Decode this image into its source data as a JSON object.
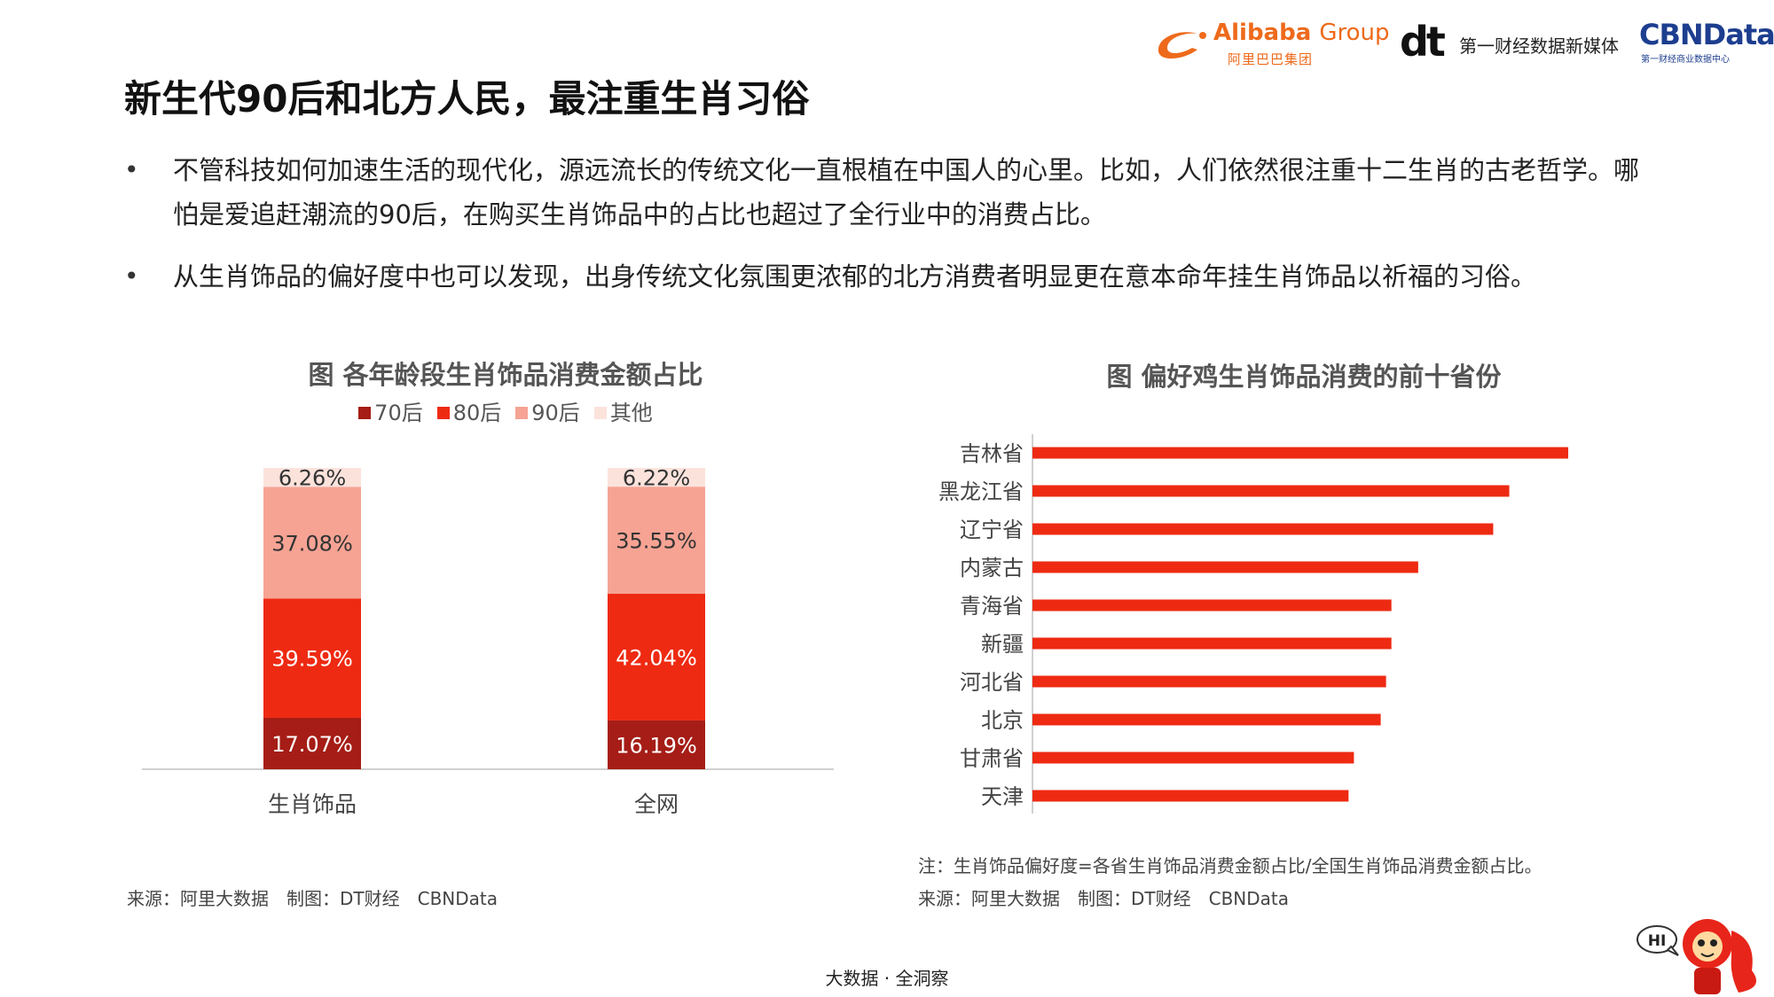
{
  "header": {
    "alibaba_name": "Alibaba",
    "alibaba_group": "Group",
    "alibaba_cn": "阿里巴巴集团",
    "dt_mark": "dt",
    "dt_text": "第一财经数据新媒体",
    "cbn_name": "CBNData",
    "cbn_sub": "第一财经商业数据中心"
  },
  "title": "新生代90后和北方人民，最注重生肖习俗",
  "bullets": [
    "不管科技如何加速生活的现代化，源远流长的传统文化一直根植在中国人的心里。比如，人们依然很注重十二生肖的古老哲学。哪怕是爱追赶潮流的90后，在购买生肖饰品中的占比也超过了全行业中的消费占比。",
    "从生肖饰品的偏好度中也可以发现，出身传统文化氛围更浓郁的北方消费者明显更在意本命年挂生肖饰品以祈福的习俗。"
  ],
  "bullet_marker": "•",
  "left_chart_title": "图 各年龄段生肖饰品消费金额占比",
  "right_chart_title": "图 偏好鸡生肖饰品消费的前十省份",
  "source_left": "来源：阿里大数据　制图：DT财经　CBNData",
  "note_right": "注：生肖饰品偏好度=各省生肖饰品消费金额占比/全国生肖饰品消费金额占比。",
  "source_right": "来源：阿里大数据　制图：DT财经　CBNData",
  "footer": "大数据 · 全洞察",
  "mascot_text": "HI",
  "colors": {
    "70后": "#a51d16",
    "80后": "#ee2a12",
    "90后": "#f6a394",
    "其他": "#fbe3dc",
    "province_bar": "#ee2a12",
    "brand_orange": "#ee6a1b",
    "brand_blue": "#1d3e8f"
  },
  "chart_data": [
    {
      "type": "bar",
      "stacked": true,
      "percent": true,
      "title": "图 各年龄段生肖饰品消费金额占比",
      "categories": [
        "生肖饰品",
        "全网"
      ],
      "series": [
        {
          "name": "70后",
          "values": [
            17.07,
            16.19
          ],
          "labels": [
            "17.07%",
            "16.19%"
          ],
          "label_color": "#ffffff"
        },
        {
          "name": "80后",
          "values": [
            39.59,
            42.04
          ],
          "labels": [
            "39.59%",
            "42.04%"
          ],
          "label_color": "#ffffff"
        },
        {
          "name": "90后",
          "values": [
            37.08,
            35.55
          ],
          "labels": [
            "37.08%",
            "35.55%"
          ],
          "label_color": "#333333"
        },
        {
          "name": "其他",
          "values": [
            6.26,
            6.22
          ],
          "labels": [
            "6.26%",
            "6.22%"
          ],
          "label_color": "#333333"
        }
      ],
      "legend_position": "top",
      "grid": false
    },
    {
      "type": "bar",
      "orientation": "horizontal",
      "title": "图 偏好鸡生肖饰品消费的前十省份",
      "categories": [
        "吉林省",
        "黑龙江省",
        "辽宁省",
        "内蒙古",
        "青海省",
        "新疆",
        "河北省",
        "北京",
        "甘肃省",
        "天津"
      ],
      "values": [
        100,
        89,
        86,
        72,
        67,
        67,
        66,
        65,
        60,
        59
      ],
      "xlim": [
        0,
        100
      ],
      "value_note": "values are relative bar lengths (no axis scale shown)",
      "grid": false
    }
  ]
}
